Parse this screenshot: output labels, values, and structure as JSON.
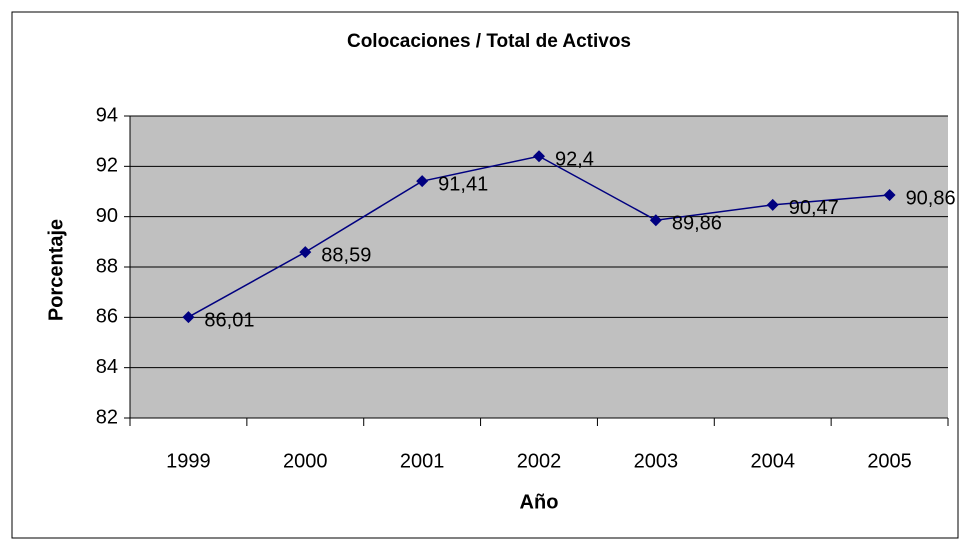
{
  "chart_data": {
    "type": "line",
    "title": "Colocaciones / Total de Activos",
    "xlabel": "Año",
    "ylabel": "Porcentaje",
    "categories": [
      "1999",
      "2000",
      "2001",
      "2002",
      "2003",
      "2004",
      "2005"
    ],
    "values": [
      86.01,
      88.59,
      91.41,
      92.4,
      89.86,
      90.47,
      90.86
    ],
    "value_labels": [
      "86,01",
      "88,59",
      "91,41",
      "92,4",
      "89,86",
      "90,47",
      "90,86"
    ],
    "color": "#000080",
    "ylim": [
      82,
      94
    ],
    "yticks": [
      82,
      84,
      86,
      88,
      90,
      92,
      94
    ],
    "grid": true
  }
}
